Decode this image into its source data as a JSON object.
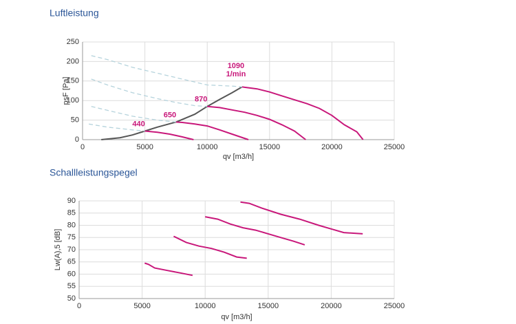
{
  "chart_data": [
    {
      "type": "line",
      "title": "Luftleistung",
      "x_label": "qv [m3/h]",
      "y_label": "psF [Pa]",
      "xlim": [
        0,
        25000
      ],
      "xticks": [
        0,
        5000,
        10000,
        15000,
        20000,
        25000
      ],
      "ylim": [
        0,
        250
      ],
      "yticks": [
        0,
        50,
        100,
        150,
        200,
        250
      ],
      "grid": true,
      "speed_unit": "1/min",
      "series": [
        {
          "name": "440",
          "color": "#c8177a",
          "x": [
            5000,
            6000,
            7000,
            8000,
            8900
          ],
          "values": [
            22,
            19,
            14,
            7,
            0
          ]
        },
        {
          "name": "650",
          "color": "#c8177a",
          "x": [
            7500,
            8000,
            9000,
            10000,
            11000,
            12000,
            13300
          ],
          "values": [
            45,
            44,
            40,
            35,
            25,
            14,
            0
          ]
        },
        {
          "name": "870",
          "color": "#c8177a",
          "x": [
            10000,
            11000,
            12000,
            13000,
            14000,
            15000,
            16000,
            17000,
            17900
          ],
          "values": [
            85,
            82,
            76,
            70,
            62,
            52,
            38,
            22,
            0
          ]
        },
        {
          "name": "1090",
          "color": "#c8177a",
          "x": [
            12800,
            13000,
            14000,
            15000,
            16000,
            17000,
            18000,
            19000,
            20000,
            21000,
            22000,
            22500
          ],
          "values": [
            135,
            134,
            130,
            122,
            112,
            102,
            92,
            80,
            62,
            38,
            20,
            0
          ]
        }
      ],
      "system_curves": [
        {
          "color": "#555555",
          "dashed": false,
          "x": [
            1500,
            3000,
            4000,
            5000,
            6000,
            7500,
            9000,
            10000,
            11000,
            12000,
            12800
          ],
          "values": [
            0,
            5,
            12,
            22,
            32,
            45,
            65,
            85,
            103,
            120,
            135
          ]
        },
        {
          "color": "#b5d3dc",
          "dashed": true,
          "x": [
            700,
            2000,
            4000,
            6000,
            8000,
            10000,
            12000,
            12800
          ],
          "values": [
            215,
            205,
            185,
            170,
            155,
            140,
            137,
            135
          ]
        },
        {
          "color": "#b5d3dc",
          "dashed": true,
          "x": [
            700,
            2000,
            4000,
            6000,
            7500,
            9000,
            10000
          ],
          "values": [
            155,
            140,
            120,
            105,
            95,
            87,
            85
          ]
        },
        {
          "color": "#b5d3dc",
          "dashed": true,
          "x": [
            700,
            2000,
            4000,
            6000,
            7500
          ],
          "values": [
            85,
            75,
            60,
            50,
            45
          ]
        },
        {
          "color": "#b5d3dc",
          "dashed": true,
          "x": [
            500,
            2000,
            4000,
            5000
          ],
          "values": [
            40,
            32,
            25,
            22
          ]
        }
      ]
    },
    {
      "type": "line",
      "title": "Schallleistungspegel",
      "x_label": "qv [m3/h]",
      "y_label": "Lw(A),5 [dB]",
      "xlim": [
        0,
        25000
      ],
      "xticks": [
        0,
        5000,
        10000,
        15000,
        20000,
        25000
      ],
      "ylim": [
        50,
        90
      ],
      "yticks": [
        50,
        55,
        60,
        65,
        70,
        75,
        80,
        85,
        90
      ],
      "grid": true,
      "series": [
        {
          "color": "#c8177a",
          "x": [
            5200,
            5500,
            6000,
            7000,
            8000,
            9000
          ],
          "values": [
            64.5,
            64,
            62.5,
            61.5,
            60.5,
            59.5
          ]
        },
        {
          "color": "#c8177a",
          "x": [
            7500,
            8500,
            9500,
            10500,
            11500,
            12500,
            13300
          ],
          "values": [
            75.5,
            73,
            71.5,
            70.5,
            69,
            67,
            66.5
          ]
        },
        {
          "color": "#c8177a",
          "x": [
            10000,
            11000,
            12000,
            13000,
            14000,
            15000,
            16000,
            17000,
            17900
          ],
          "values": [
            83.5,
            82.5,
            80.5,
            79,
            78,
            76.5,
            75,
            73.5,
            72
          ]
        },
        {
          "color": "#c8177a",
          "x": [
            12800,
            13500,
            14500,
            16000,
            17500,
            19000,
            20000,
            21000,
            22500
          ],
          "values": [
            89.5,
            89,
            87,
            84.5,
            82.5,
            80,
            78.5,
            77,
            76.5
          ]
        }
      ]
    }
  ]
}
